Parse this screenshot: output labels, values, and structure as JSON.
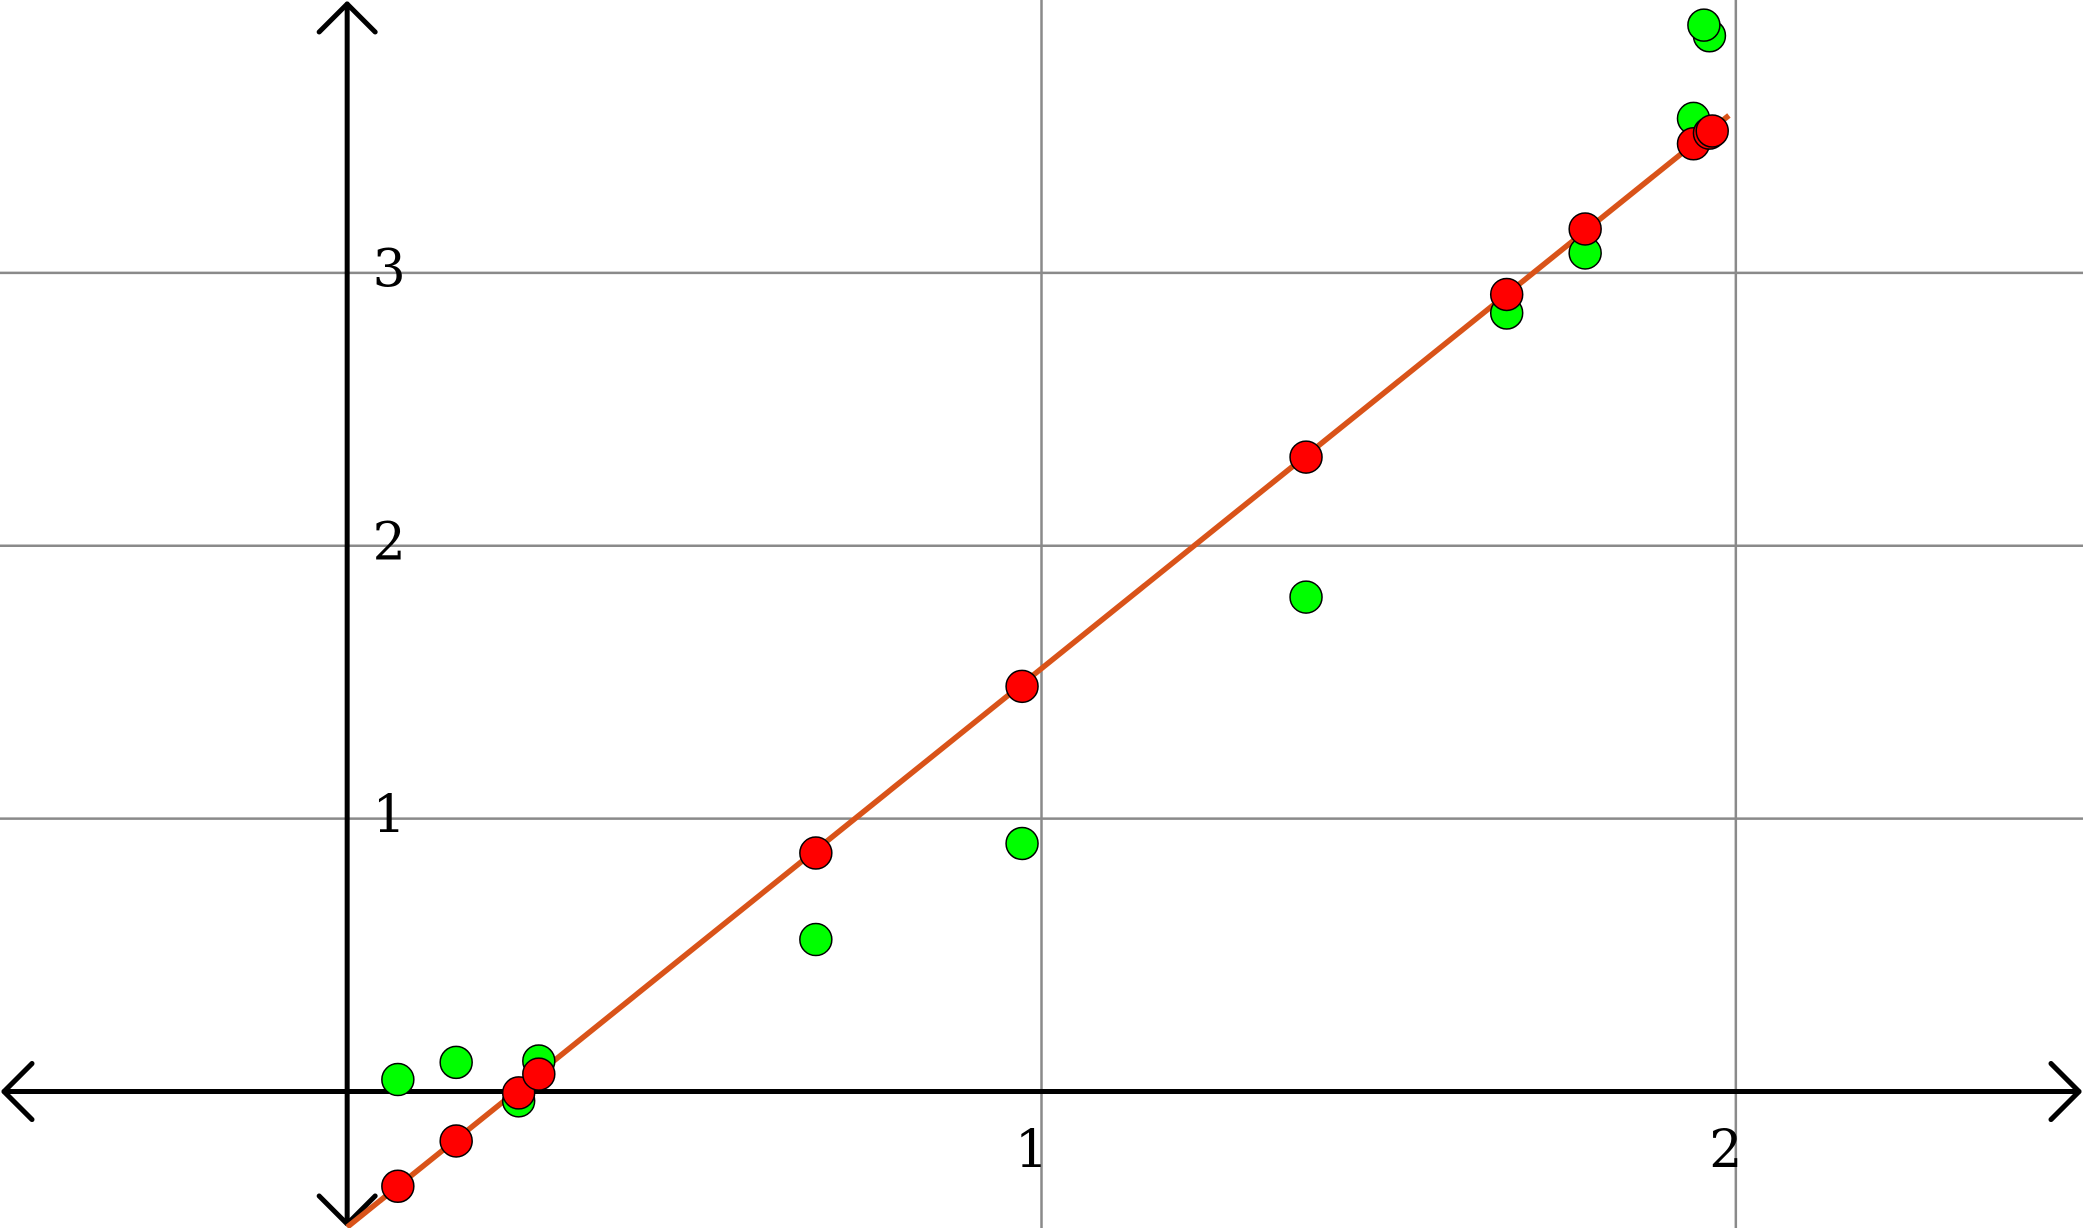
{
  "chart_data": {
    "type": "scatter",
    "xlim": [
      -0.5,
      2.5
    ],
    "ylim": [
      -0.5,
      4
    ],
    "xticks": [
      1,
      2
    ],
    "yticks": [
      1,
      2,
      3
    ],
    "grid": true,
    "series": [
      {
        "type": "scatter",
        "color": "#00ff00",
        "x": [
          0.073,
          0.157,
          0.247,
          0.276,
          0.675,
          0.972,
          1.381,
          1.67,
          1.783,
          1.939,
          1.962,
          1.954
        ],
        "values": [
          0.044,
          0.107,
          -0.034,
          0.112,
          0.557,
          0.909,
          1.812,
          2.853,
          3.073,
          3.566,
          3.869,
          3.908
        ]
      },
      {
        "type": "scatter",
        "color": "#ff0000",
        "x": [
          0.073,
          0.157,
          0.247,
          0.276,
          0.675,
          0.972,
          1.381,
          1.67,
          1.783,
          1.939,
          1.962,
          1.966
        ],
        "values": [
          -0.347,
          -0.181,
          -0.005,
          0.064,
          0.874,
          1.485,
          2.325,
          2.921,
          3.161,
          3.473,
          3.512,
          3.52
        ]
      },
      {
        "type": "line",
        "color": "#d95319",
        "x": [
          0,
          1.99
        ],
        "values": [
          -0.497,
          3.577
        ]
      }
    ]
  }
}
